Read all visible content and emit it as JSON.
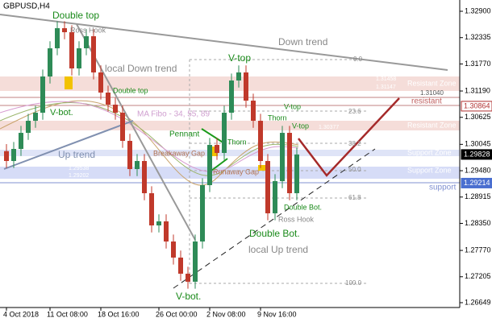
{
  "chart_data": {
    "type": "candlestick",
    "title": "GBPUSD,H4",
    "categories": [
      "4 Oct 2018",
      null,
      null,
      null,
      null,
      null,
      "11 Oct 08:00",
      null,
      null,
      null,
      null,
      null,
      null,
      "18 Oct 16:00",
      null,
      null,
      null,
      null,
      null,
      null,
      null,
      "26 Oct 00:00",
      null,
      null,
      null,
      null,
      null,
      null,
      "2 Nov 08:00",
      null,
      null,
      null,
      null,
      null,
      null,
      "9 Nov 16:00",
      null,
      null,
      null,
      null,
      null
    ],
    "open": [
      1.299,
      1.29688,
      1.29947,
      1.30292,
      1.30551,
      1.30724,
      1.31501,
      1.32106,
      1.32537,
      1.32451,
      1.31674,
      1.32106,
      1.32365,
      1.31588,
      1.31156,
      1.30897,
      1.30724,
      1.3012,
      1.29515,
      1.29688,
      1.28997,
      1.28306,
      1.28393,
      1.27961,
      1.27616,
      1.2727,
      1.27098,
      1.27961,
      1.2917,
      1.30033,
      1.29861,
      1.30724,
      1.31415,
      1.31588,
      1.30983,
      1.30551,
      1.29688,
      1.28566,
      1.29256,
      1.30292,
      1.28997
    ],
    "high": [
      1.3005,
      1.30097,
      1.30442,
      1.30701,
      1.30874,
      1.31651,
      1.32256,
      1.32687,
      1.32687,
      1.32601,
      1.32256,
      1.32515,
      1.32515,
      1.31738,
      1.31306,
      1.31047,
      1.30874,
      1.3027,
      1.29838,
      1.29838,
      1.29147,
      1.28543,
      1.28543,
      1.28111,
      1.27766,
      1.2742,
      1.28111,
      1.2932,
      1.30183,
      1.30183,
      1.30874,
      1.31565,
      1.31738,
      1.31738,
      1.31133,
      1.30701,
      1.29838,
      1.29406,
      1.30442,
      1.30442,
      1.29978
    ],
    "low": [
      1.29538,
      1.29538,
      1.29797,
      1.30142,
      1.30401,
      1.30574,
      1.31351,
      1.31956,
      1.32301,
      1.31524,
      1.31524,
      1.31956,
      1.31438,
      1.31006,
      1.30747,
      1.30574,
      1.2997,
      1.29365,
      1.29365,
      1.28847,
      1.28156,
      1.28156,
      1.27811,
      1.27466,
      1.2712,
      1.26948,
      1.26948,
      1.27811,
      1.2902,
      1.29711,
      1.29711,
      1.30574,
      1.31265,
      1.30833,
      1.30401,
      1.29538,
      1.28416,
      1.28416,
      1.29106,
      1.28847,
      1.28847
    ],
    "close": [
      1.29688,
      1.29947,
      1.30292,
      1.30551,
      1.30724,
      1.31501,
      1.32106,
      1.32537,
      1.32451,
      1.31674,
      1.32106,
      1.32365,
      1.31588,
      1.31156,
      1.30897,
      1.30724,
      1.3012,
      1.29515,
      1.29688,
      1.28997,
      1.28306,
      1.28393,
      1.27961,
      1.27616,
      1.2727,
      1.27098,
      1.27961,
      1.2917,
      1.30033,
      1.29861,
      1.30724,
      1.31415,
      1.31588,
      1.30983,
      1.30551,
      1.29688,
      1.28566,
      1.29256,
      1.30292,
      1.28997,
      1.29828
    ],
    "up_color": "#2e8b57",
    "down_color": "#c0392b",
    "ylim": [
      1.26545,
      1.33142
    ],
    "yticks": [
      {
        "value": 1.329,
        "label": "1.32900"
      },
      {
        "value": 1.32335,
        "label": "1.32335"
      },
      {
        "value": 1.3177,
        "label": "1.31770"
      },
      {
        "value": 1.3119,
        "label": "1.31190"
      },
      {
        "value": 1.30625,
        "label": "1.30625"
      },
      {
        "value": 1.30045,
        "label": "1.30045"
      },
      {
        "value": 1.2948,
        "label": "1.29480"
      },
      {
        "value": 1.28915,
        "label": "1.28915"
      },
      {
        "value": 1.2835,
        "label": "1.28350"
      },
      {
        "value": 1.2777,
        "label": "1.27770"
      },
      {
        "value": 1.27205,
        "label": "1.27205"
      },
      {
        "value": 1.26649,
        "label": "1.26649"
      }
    ],
    "price_marks": [
      {
        "value": 1.30864,
        "label": "1.30864",
        "color": "#b03030"
      },
      {
        "value": 1.29828,
        "label": "1.29828",
        "color": "#000000"
      },
      {
        "value": 1.29214,
        "label": "1.29214",
        "color": "#4a6fd0"
      }
    ],
    "annotations": {
      "double_top": "Double top",
      "ross_hook_1": "Ross Hook",
      "down_trend": "Down trend",
      "local_down_trend": "local Down trend",
      "v_top_1": "V-top",
      "resistant_zone_1": "Resistant Zone",
      "resistant": "resistant",
      "level_1": "1.31040",
      "v_bot_1": "V-bot.",
      "double_top_2": "Double top",
      "ma_fibo": "MA Fibo - 34, 55, 89",
      "pennant": "Pennant",
      "thorn_1": "Thorn",
      "v_top_2": "V-top",
      "thorn_2": "Thorn",
      "v_top_3": "V-top",
      "resistant_zone_2": "Resistant Zone",
      "up_trend": "Up trend",
      "breakaway_gap": "Breakaway Gap",
      "runaway_gap": "Runaway Gap",
      "support_zone_1": "Support Zone",
      "support_zone_2": "Support Zone",
      "support": "support",
      "double_bot_1": "Double Bot.",
      "ross_hook_2": "Ross Hook",
      "double_bot_2": "Double Bot.",
      "local_up_trend": "local  Up trend",
      "v_bot_2": "V-bot.",
      "fib_0": "0.0",
      "fib_236": "23.6",
      "fib_382": "38.2",
      "fib_50": "50.0",
      "fib_618": "61.8",
      "fib_100": "100.0",
      "zone_1": "1.31458",
      "zone_2": "1.31147",
      "zone_3": "1.30377",
      "zone_4": "1.29538",
      "zone_5": "1.29202"
    }
  }
}
